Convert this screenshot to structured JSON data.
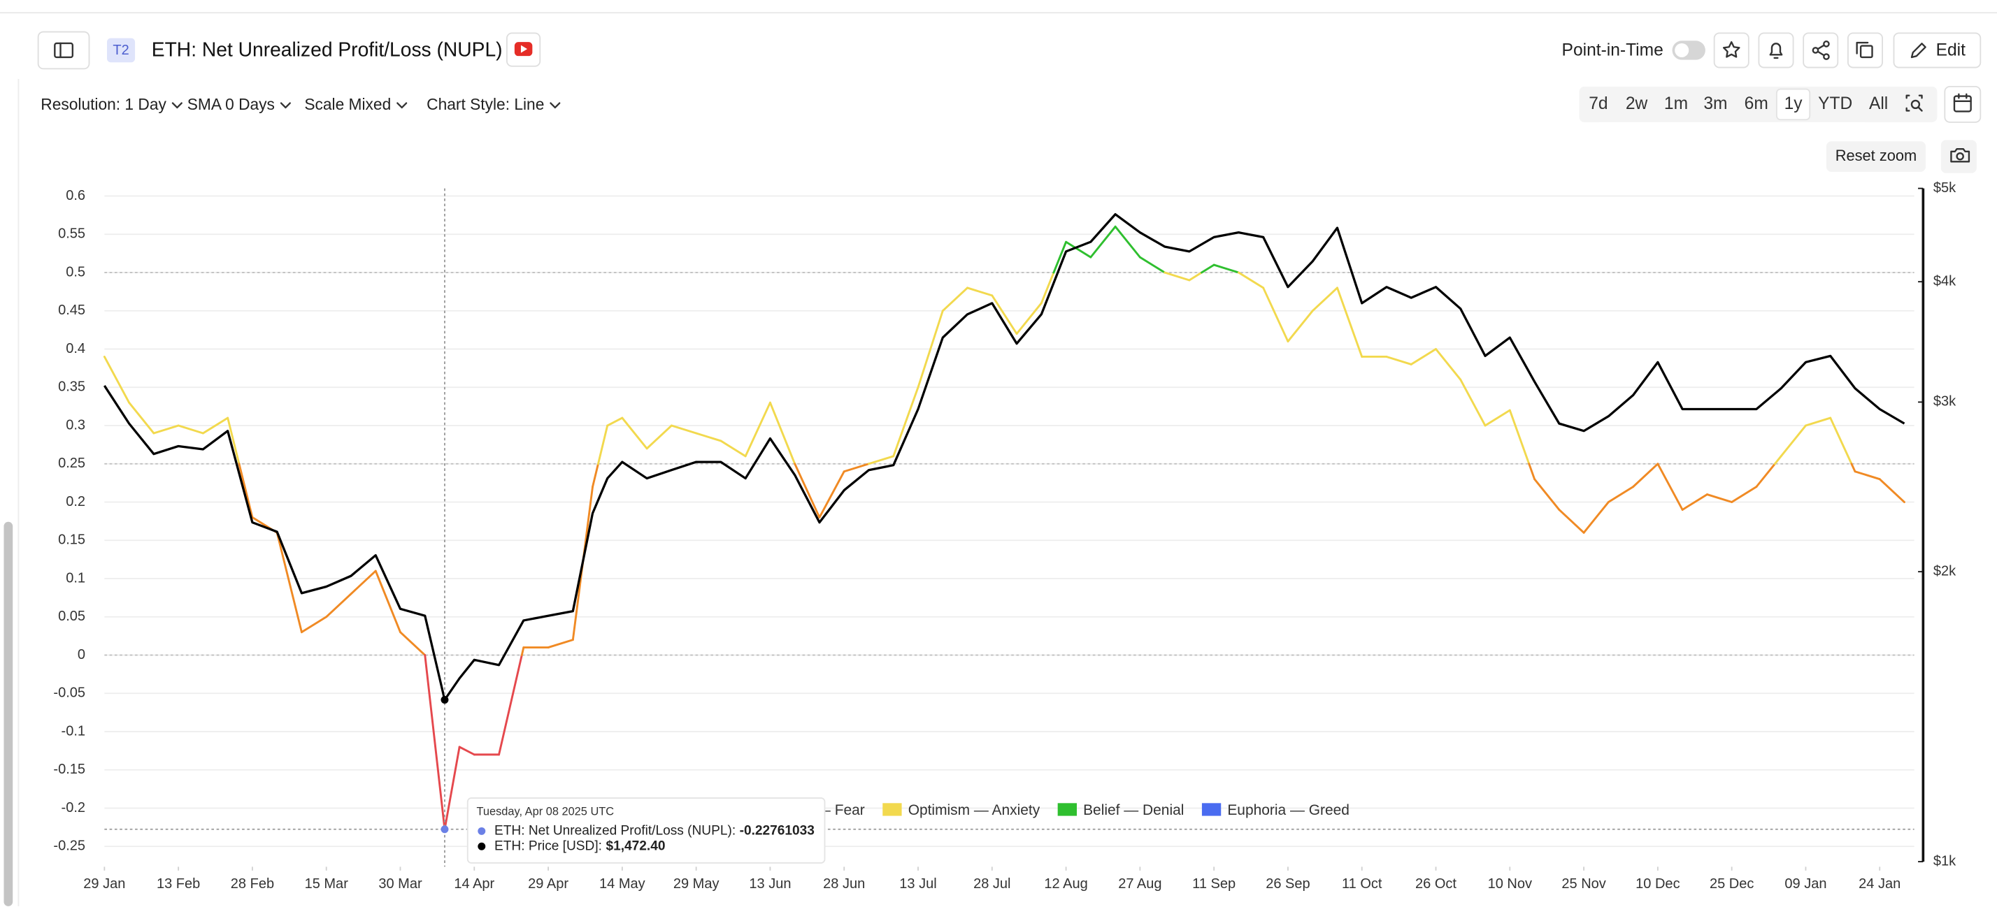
{
  "header": {
    "badge": "T2",
    "title": "ETH: Net Unrealized Profit/Loss (NUPL)",
    "point_in_time": "Point-in-Time",
    "edit": "Edit"
  },
  "toolbar": {
    "options": [
      "Resolution: 1 Day",
      "SMA 0 Days",
      "Scale Mixed",
      "Chart Style: Line"
    ],
    "ranges": [
      "7d",
      "2w",
      "1m",
      "3m",
      "6m",
      "1y",
      "YTD",
      "All"
    ],
    "active_range": "1y",
    "reset_zoom": "Reset zoom"
  },
  "chart_data": {
    "type": "line",
    "x": [
      "2025-01-29",
      "2025-02-03",
      "2025-02-08",
      "2025-02-13",
      "2025-02-18",
      "2025-02-23",
      "2025-02-28",
      "2025-03-05",
      "2025-03-10",
      "2025-03-15",
      "2025-03-20",
      "2025-03-25",
      "2025-03-30",
      "2025-04-04",
      "2025-04-08",
      "2025-04-11",
      "2025-04-14",
      "2025-04-19",
      "2025-04-24",
      "2025-04-29",
      "2025-05-04",
      "2025-05-08",
      "2025-05-11",
      "2025-05-14",
      "2025-05-19",
      "2025-05-24",
      "2025-05-29",
      "2025-06-03",
      "2025-06-08",
      "2025-06-13",
      "2025-06-18",
      "2025-06-23",
      "2025-06-28",
      "2025-07-03",
      "2025-07-08",
      "2025-07-13",
      "2025-07-18",
      "2025-07-23",
      "2025-07-28",
      "2025-08-02",
      "2025-08-07",
      "2025-08-12",
      "2025-08-17",
      "2025-08-22",
      "2025-08-27",
      "2025-09-01",
      "2025-09-06",
      "2025-09-11",
      "2025-09-16",
      "2025-09-21",
      "2025-09-26",
      "2025-10-01",
      "2025-10-06",
      "2025-10-11",
      "2025-10-16",
      "2025-10-21",
      "2025-10-26",
      "2025-10-31",
      "2025-11-05",
      "2025-11-10",
      "2025-11-15",
      "2025-11-20",
      "2025-11-25",
      "2025-11-30",
      "2025-12-05",
      "2025-12-10",
      "2025-12-15",
      "2025-12-20",
      "2025-12-25",
      "2025-12-30",
      "2026-01-04",
      "2026-01-09",
      "2026-01-14",
      "2026-01-19",
      "2026-01-24",
      "2026-01-29"
    ],
    "series": [
      {
        "below_color": "#e5484d",
        "values": [
          0.39,
          0.33,
          0.29,
          0.3,
          0.29,
          0.31,
          0.18,
          0.16,
          0.03,
          0.05,
          0.08,
          0.11,
          0.03,
          0.0,
          -0.22761033,
          -0.12,
          -0.13,
          -0.13,
          0.01,
          0.01,
          0.02,
          0.22,
          0.3,
          0.31,
          0.27,
          0.3,
          0.29,
          0.28,
          0.26,
          0.33,
          0.25,
          0.18,
          0.24,
          0.25,
          0.26,
          0.35,
          0.45,
          0.48,
          0.47,
          0.42,
          0.46,
          0.54,
          0.52,
          0.56,
          0.52,
          0.5,
          0.49,
          0.51,
          0.5,
          0.48,
          0.41,
          0.45,
          0.48,
          0.39,
          0.39,
          0.38,
          0.4,
          0.36,
          0.3,
          0.32,
          0.23,
          0.19,
          0.16,
          0.2,
          0.22,
          0.25,
          0.19,
          0.21,
          0.2,
          0.22,
          0.26,
          0.3,
          0.31,
          0.24,
          0.23,
          0.2
        ]
      },
      {
        "color": "#000000",
        "axis": "y2",
        "values": [
          3120,
          2850,
          2650,
          2700,
          2680,
          2800,
          2250,
          2200,
          1900,
          1930,
          1980,
          2080,
          1830,
          1800,
          1472.4,
          1550,
          1620,
          1600,
          1780,
          1800,
          1820,
          2300,
          2500,
          2600,
          2500,
          2550,
          2600,
          2600,
          2500,
          2750,
          2520,
          2250,
          2430,
          2550,
          2580,
          2950,
          3500,
          3700,
          3800,
          3450,
          3700,
          4300,
          4400,
          4700,
          4500,
          4350,
          4300,
          4450,
          4500,
          4450,
          3950,
          4200,
          4550,
          3800,
          3950,
          3850,
          3950,
          3750,
          3350,
          3500,
          3150,
          2850,
          2800,
          2900,
          3050,
          3300,
          2950,
          2950,
          2950,
          2950,
          3100,
          3300,
          3350,
          3100,
          2950,
          2850
        ],
        "value_labels": [
          null,
          null,
          null,
          null,
          null,
          null,
          null,
          null,
          null,
          null,
          null,
          null,
          null,
          null,
          "$1,472.40",
          null,
          null,
          null,
          null,
          null,
          null,
          null,
          null,
          null,
          null,
          null,
          null,
          null,
          null,
          null,
          null,
          null,
          null,
          null,
          null,
          null,
          null,
          null,
          null,
          null,
          null,
          null,
          null,
          null,
          null,
          null,
          null,
          null,
          null,
          null,
          null,
          null,
          null,
          null,
          null,
          null,
          null,
          null,
          null,
          null,
          null,
          null,
          null,
          null,
          null,
          null,
          null,
          null,
          null,
          null,
          null,
          null,
          null,
          null,
          null,
          null
        ]
      }
    ],
    "zones": [
      {
        "name": "Hope — Fear",
        "color": "#f08a24",
        "from": 0,
        "to": 0.25
      },
      {
        "name": "Optimism — Anxiety",
        "color": "#f2d94e",
        "from": 0.25,
        "to": 0.5
      },
      {
        "name": "Belief — Denial",
        "color": "#2fbf2f",
        "from": 0.5,
        "to": 0.75
      },
      {
        "name": "Euphoria — Greed",
        "color": "#4a6cf0",
        "from": 0.75,
        "to": 1
      }
    ],
    "xlim": [
      "2025-01-29",
      "2026-01-31"
    ],
    "xticks": [
      {
        "value": "2025-01-29",
        "label": "29 Jan"
      },
      {
        "value": "2025-02-13",
        "label": "13 Feb"
      },
      {
        "value": "2025-02-28",
        "label": "28 Feb"
      },
      {
        "value": "2025-03-15",
        "label": "15 Mar"
      },
      {
        "value": "2025-03-30",
        "label": "30 Mar"
      },
      {
        "value": "2025-04-14",
        "label": "14 Apr"
      },
      {
        "value": "2025-04-29",
        "label": "29 Apr"
      },
      {
        "value": "2025-05-14",
        "label": "14 May"
      },
      {
        "value": "2025-05-29",
        "label": "29 May"
      },
      {
        "value": "2025-06-13",
        "label": "13 Jun"
      },
      {
        "value": "2025-06-28",
        "label": "28 Jun"
      },
      {
        "value": "2025-07-13",
        "label": "13 Jul"
      },
      {
        "value": "2025-07-28",
        "label": "28 Jul"
      },
      {
        "value": "2025-08-12",
        "label": "12 Aug"
      },
      {
        "value": "2025-08-27",
        "label": "27 Aug"
      },
      {
        "value": "2025-09-11",
        "label": "11 Sep"
      },
      {
        "value": "2025-09-26",
        "label": "26 Sep"
      },
      {
        "value": "2025-10-11",
        "label": "11 Oct"
      },
      {
        "value": "2025-10-26",
        "label": "26 Oct"
      },
      {
        "value": "2025-11-10",
        "label": "10 Nov"
      },
      {
        "value": "2025-11-25",
        "label": "25 Nov"
      },
      {
        "value": "2025-12-10",
        "label": "10 Dec"
      },
      {
        "value": "2025-12-25",
        "label": "25 Dec"
      },
      {
        "value": "2026-01-09",
        "label": "09 Jan"
      },
      {
        "value": "2026-01-24",
        "label": "24 Jan"
      }
    ],
    "ylim": [
      -0.25,
      0.6
    ],
    "yticks": [
      0.6,
      0.55,
      0.5,
      0.45,
      0.4,
      0.35,
      0.3,
      0.25,
      0.2,
      0.15,
      0.1,
      0.05,
      0,
      -0.05,
      -0.1,
      -0.15,
      -0.2,
      -0.25
    ],
    "y2lim": [
      1000,
      5000
    ],
    "y2scale": "log",
    "y2ticks": [
      {
        "value": 1000,
        "label": "$1k"
      },
      {
        "value": 2000,
        "label": "$2k"
      },
      {
        "value": 3000,
        "label": "$3k"
      },
      {
        "value": 4000,
        "label": "$4k"
      },
      {
        "value": 5000,
        "label": "$5k"
      }
    ],
    "grid": true,
    "tooltip": {
      "x": "2025-04-08",
      "title": "Tuesday, Apr 08 2025 UTC",
      "rows": [
        {
          "label": "ETH: Net Unrealized Profit/Loss (NUPL):",
          "marker_color": "#6b80e6"
        },
        {
          "label": "ETH: Price [USD]:",
          "marker_color": "#000000"
        }
      ]
    }
  }
}
